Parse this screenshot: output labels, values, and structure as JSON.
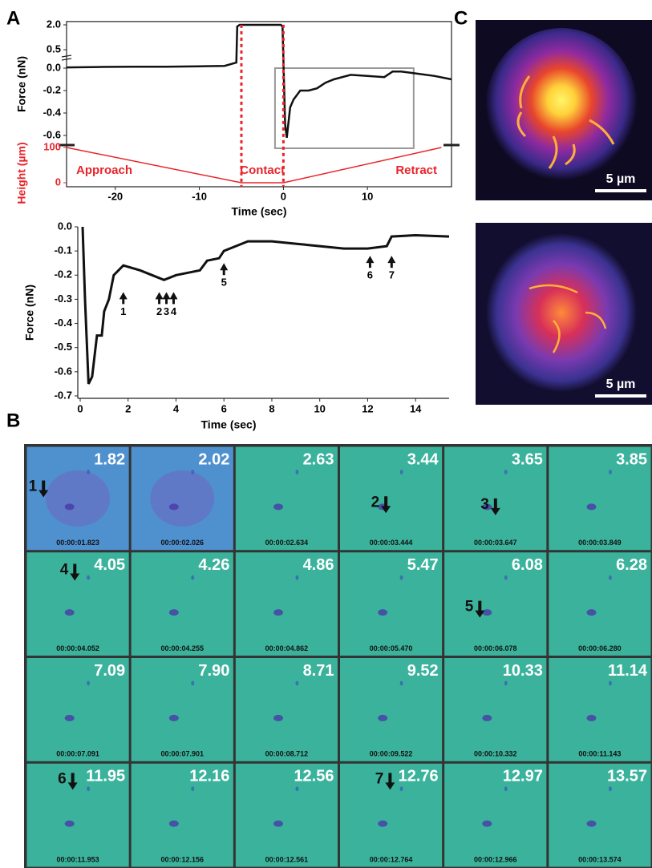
{
  "panels": {
    "a": "A",
    "b": "B",
    "c": "C"
  },
  "chart_data": [
    {
      "type": "line",
      "xlabel": "Time (sec)",
      "ylabel": "Force (nN)",
      "y2label": "Height (µm)",
      "xlim": [
        -25.8,
        20
      ],
      "xticks": [
        -20,
        -10,
        0,
        10
      ],
      "ylim": [
        -0.7,
        2.2
      ],
      "yticks": [
        {
          "value": 2,
          "label": "2.0"
        },
        0.5,
        {
          "value": 0,
          "label": "0.0"
        },
        -0.2,
        -0.4,
        -0.6
      ],
      "y2lim": [
        0,
        100
      ],
      "y2ticks": [
        100,
        0
      ],
      "contact_x": [
        -5,
        0
      ],
      "annotations": [
        "Approach",
        "Contact",
        "Retract"
      ],
      "series": [
        {
          "color": "#111111",
          "x": [
            -25.8,
            -22,
            -18,
            -14,
            -10,
            -7,
            -5.6,
            -5.5,
            -5.2,
            -0.3,
            -0.1,
            0.2,
            0.4,
            0.8,
            1.2,
            2,
            3,
            4,
            5,
            6,
            8,
            10,
            12,
            13,
            14,
            16,
            18,
            20
          ],
          "values": [
            0.02,
            0.03,
            0.04,
            0.04,
            0.05,
            0.06,
            0.15,
            1.9,
            2.0,
            2.0,
            1.9,
            -0.5,
            -0.62,
            -0.35,
            -0.28,
            -0.2,
            -0.2,
            -0.18,
            -0.13,
            -0.1,
            -0.06,
            -0.07,
            -0.08,
            -0.03,
            -0.03,
            -0.05,
            -0.07,
            -0.1
          ]
        },
        {
          "color": "#e8242a",
          "axis": "y2",
          "x": [
            -25.8,
            -5,
            0,
            18.8
          ],
          "values": [
            100,
            0,
            0,
            100
          ]
        }
      ]
    },
    {
      "type": "line",
      "xlabel": "Time (sec)",
      "ylabel": "Force (nN)",
      "xlim": [
        -0.1,
        15.4
      ],
      "xticks": [
        0,
        2,
        4,
        6,
        8,
        10,
        12,
        14
      ],
      "ylim": [
        -0.71,
        0.0
      ],
      "yticks": [
        {
          "value": 0,
          "label": "0.0"
        },
        -0.1,
        -0.2,
        -0.3,
        -0.4,
        -0.5,
        -0.6,
        -0.7
      ],
      "series": [
        {
          "color": "#111111",
          "x": [
            0.1,
            0.2,
            0.35,
            0.5,
            0.7,
            0.9,
            1.0,
            1.2,
            1.4,
            1.8,
            2.5,
            3.0,
            3.5,
            4.0,
            4.5,
            5.0,
            5.3,
            5.8,
            6.0,
            6.5,
            7,
            8,
            9,
            10,
            11,
            12,
            12.8,
            13.0,
            14,
            15.4
          ],
          "values": [
            0.0,
            -0.3,
            -0.65,
            -0.62,
            -0.45,
            -0.45,
            -0.35,
            -0.3,
            -0.2,
            -0.16,
            -0.18,
            -0.2,
            -0.22,
            -0.2,
            -0.19,
            -0.18,
            -0.14,
            -0.13,
            -0.1,
            -0.08,
            -0.06,
            -0.06,
            -0.07,
            -0.08,
            -0.09,
            -0.09,
            -0.08,
            -0.04,
            -0.035,
            -0.04
          ]
        }
      ],
      "arrows": [
        {
          "label": "1",
          "x": 1.8,
          "y": -0.27
        },
        {
          "label": "2",
          "x": 3.3,
          "y": -0.27
        },
        {
          "label": "3",
          "x": 3.6,
          "y": -0.27
        },
        {
          "label": "4",
          "x": 3.9,
          "y": -0.27
        },
        {
          "label": "5",
          "x": 6.0,
          "y": -0.15
        },
        {
          "label": "6",
          "x": 12.1,
          "y": -0.12
        },
        {
          "label": "7",
          "x": 13.0,
          "y": -0.12
        }
      ]
    }
  ],
  "tiles": [
    {
      "time": "1.82",
      "stamp": "00:00:01.823",
      "marker": "1"
    },
    {
      "time": "2.02",
      "stamp": "00:00:02.026"
    },
    {
      "time": "2.63",
      "stamp": "00:00:02.634"
    },
    {
      "time": "3.44",
      "stamp": "00:00:03.444",
      "marker": "2"
    },
    {
      "time": "3.65",
      "stamp": "00:00:03.647",
      "marker": "3"
    },
    {
      "time": "3.85",
      "stamp": "00:00:03.849"
    },
    {
      "time": "4.05",
      "stamp": "00:00:04.052",
      "marker": "4"
    },
    {
      "time": "4.26",
      "stamp": "00:00:04.255"
    },
    {
      "time": "4.86",
      "stamp": "00:00:04.862"
    },
    {
      "time": "5.47",
      "stamp": "00:00:05.470"
    },
    {
      "time": "6.08",
      "stamp": "00:00:06.078",
      "marker": "5"
    },
    {
      "time": "6.28",
      "stamp": "00:00:06.280"
    },
    {
      "time": "7.09",
      "stamp": "00:00:07.091"
    },
    {
      "time": "7.90",
      "stamp": "00:00:07.901"
    },
    {
      "time": "8.71",
      "stamp": "00:00:08.712"
    },
    {
      "time": "9.52",
      "stamp": "00:00:09.522"
    },
    {
      "time": "10.33",
      "stamp": "00:00:10.332"
    },
    {
      "time": "11.14",
      "stamp": "00:00:11.143"
    },
    {
      "time": "11.95",
      "stamp": "00:00:11.953",
      "marker": "6"
    },
    {
      "time": "12.16",
      "stamp": "00:00:12.156"
    },
    {
      "time": "12.56",
      "stamp": "00:00:12.561"
    },
    {
      "time": "12.76",
      "stamp": "00:00:12.764",
      "marker": "7"
    },
    {
      "time": "12.97",
      "stamp": "00:00:12.966"
    },
    {
      "time": "13.57",
      "stamp": "00:00:13.574"
    }
  ],
  "images": [
    {
      "scale": "5 µm"
    },
    {
      "scale": "5 µm"
    }
  ]
}
